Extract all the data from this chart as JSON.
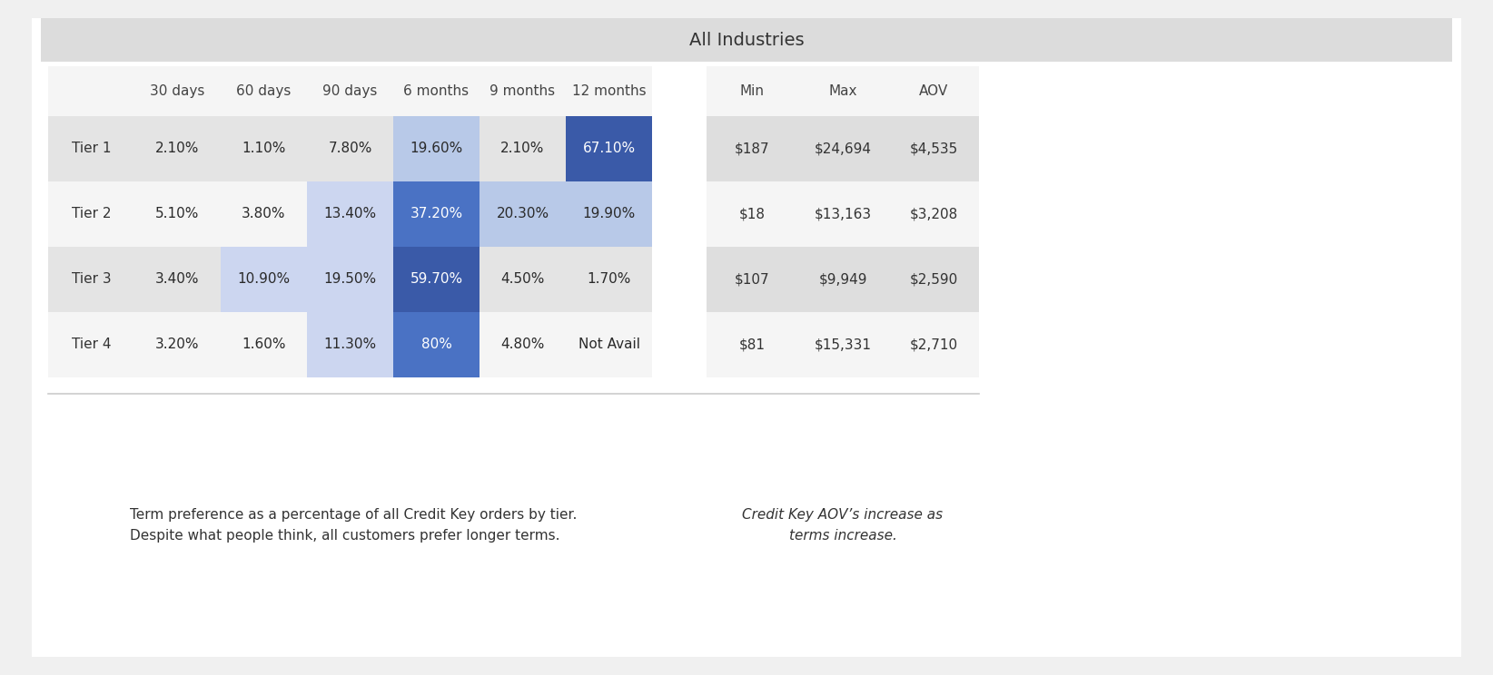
{
  "title": "All Industries",
  "col_headers": [
    "30 days",
    "60 days",
    "90 days",
    "6 months",
    "9 months",
    "12 months"
  ],
  "right_headers": [
    "Min",
    "Max",
    "AOV"
  ],
  "row_labels": [
    "Tier 1",
    "Tier 2",
    "Tier 3",
    "Tier 4"
  ],
  "values": [
    [
      "2.10%",
      "1.10%",
      "7.80%",
      "19.60%",
      "2.10%",
      "67.10%"
    ],
    [
      "5.10%",
      "3.80%",
      "13.40%",
      "37.20%",
      "20.30%",
      "19.90%"
    ],
    [
      "3.40%",
      "10.90%",
      "19.50%",
      "59.70%",
      "4.50%",
      "1.70%"
    ],
    [
      "3.20%",
      "1.60%",
      "11.30%",
      "80%",
      "4.80%",
      "Not Avail"
    ]
  ],
  "right_values": [
    [
      "$187",
      "$24,694",
      "$4,535"
    ],
    [
      "$18",
      "$13,163",
      "$3,208"
    ],
    [
      "$107",
      "$9,949",
      "$2,590"
    ],
    [
      "$81",
      "$15,331",
      "$2,710"
    ]
  ],
  "cell_colors": [
    [
      "#e4e4e4",
      "#e4e4e4",
      "#e4e4e4",
      "#b8c9e8",
      "#e4e4e4",
      "#3a5aa8"
    ],
    [
      "#f5f5f5",
      "#f5f5f5",
      "#ccd6f0",
      "#4a72c4",
      "#b8c9e8",
      "#b8c9e8"
    ],
    [
      "#e4e4e4",
      "#ccd6f0",
      "#ccd6f0",
      "#3a5aa8",
      "#e4e4e4",
      "#e4e4e4"
    ],
    [
      "#f5f5f5",
      "#f5f5f5",
      "#ccd6f0",
      "#4a72c4",
      "#f5f5f5",
      "#f5f5f5"
    ]
  ],
  "text_colors": [
    [
      "#2a2a2a",
      "#2a2a2a",
      "#2a2a2a",
      "#2a2a2a",
      "#2a2a2a",
      "#ffffff"
    ],
    [
      "#2a2a2a",
      "#2a2a2a",
      "#2a2a2a",
      "#ffffff",
      "#2a2a2a",
      "#2a2a2a"
    ],
    [
      "#2a2a2a",
      "#2a2a2a",
      "#2a2a2a",
      "#ffffff",
      "#2a2a2a",
      "#2a2a2a"
    ],
    [
      "#2a2a2a",
      "#2a2a2a",
      "#2a2a2a",
      "#ffffff",
      "#2a2a2a",
      "#2a2a2a"
    ]
  ],
  "row_bg": [
    "#e4e4e4",
    "#f5f5f5",
    "#e4e4e4",
    "#f5f5f5"
  ],
  "right_row_bg": [
    "#dedede",
    "#f5f5f5",
    "#dedede",
    "#f5f5f5"
  ],
  "title_bg": "#dcdcdc",
  "header_bg": "#f5f5f5",
  "footer_left": "Term preference as a percentage of all Credit Key orders by tier.\nDespite what people think, all customers prefer longer terms.",
  "footer_right": "Credit Key AOV’s increase as\nterms increase.",
  "fig_bg": "#f0f0f0"
}
